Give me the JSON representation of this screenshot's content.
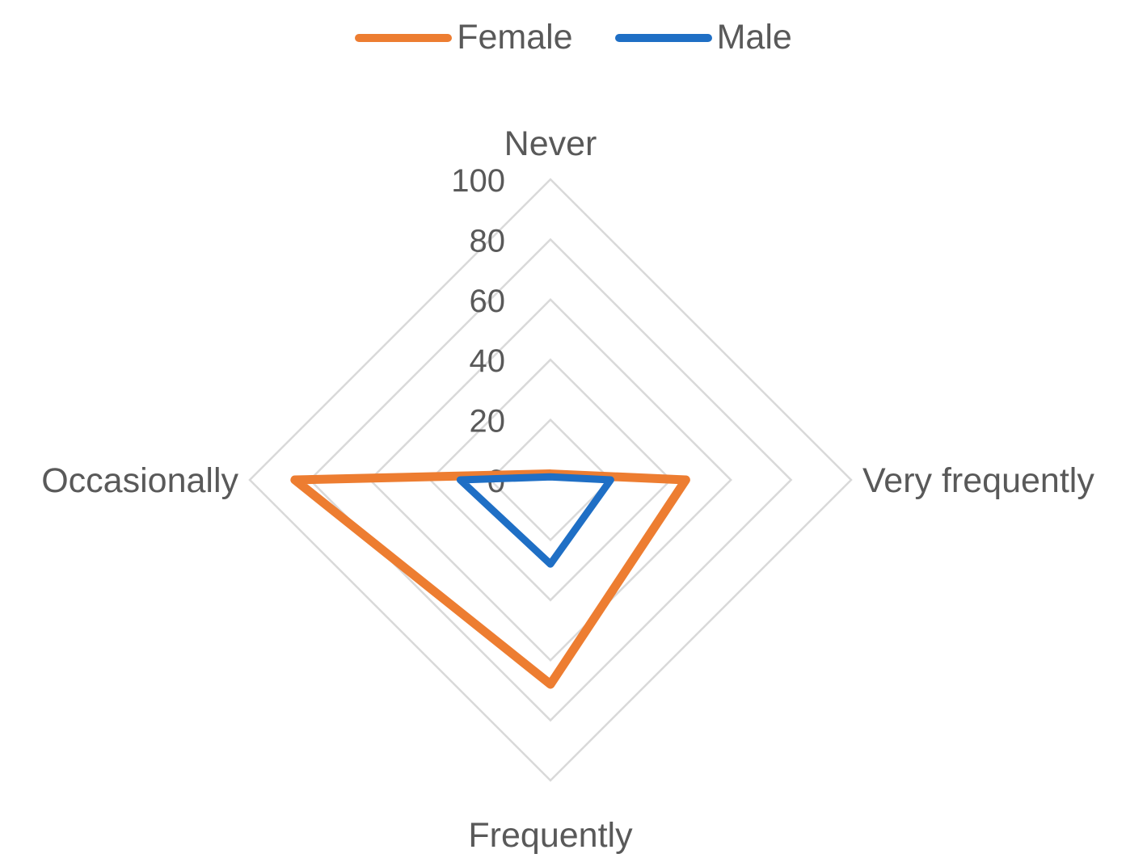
{
  "chart_data": {
    "type": "radar",
    "categories": [
      "Never",
      "Very frequently",
      "Frequently",
      "Occasionally"
    ],
    "series": [
      {
        "name": "Female",
        "color": "#ED7D31",
        "values": [
          2,
          45,
          68,
          85
        ]
      },
      {
        "name": "Male",
        "color": "#1F6FC5",
        "values": [
          1,
          20,
          28,
          30
        ]
      }
    ],
    "rlim": [
      0,
      100
    ],
    "ticks": [
      "0",
      "20",
      "40",
      "60",
      "80",
      "100"
    ],
    "gridline_color": "#D9D9D9",
    "legend_position": "top"
  }
}
